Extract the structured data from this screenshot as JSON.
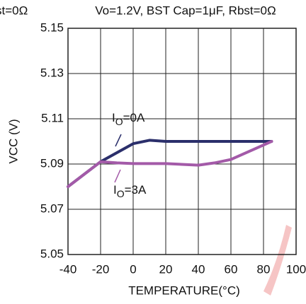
{
  "chart_data": {
    "type": "line",
    "left_title_fragment": "st=0Ω",
    "title": "Vo=1.2V, BST Cap=1μF, Rbst=0Ω",
    "x_label": "TEMPERATURE(°C)",
    "y_label": "VCC (V)",
    "xlim": [
      -40,
      100
    ],
    "xticks": [
      -40,
      -20,
      0,
      20,
      40,
      60,
      80,
      100
    ],
    "ylim": [
      5.05,
      5.15
    ],
    "yticks": [
      5.05,
      5.07,
      5.09,
      5.11,
      5.13,
      5.15
    ],
    "grid": true,
    "series": [
      {
        "name": [
          "I",
          "O",
          "=0A"
        ],
        "color": "#2b2f6b",
        "x": [
          -40,
          -20,
          -10,
          0,
          10,
          20,
          40,
          60,
          85
        ],
        "values": [
          5.08,
          5.091,
          5.095,
          5.099,
          5.1005,
          5.1,
          5.1,
          5.1,
          5.1
        ]
      },
      {
        "name": [
          "I",
          "O",
          "=3A"
        ],
        "color": "#a35aa8",
        "x": [
          -40,
          -20,
          -10,
          0,
          20,
          40,
          50,
          60,
          85
        ],
        "values": [
          5.08,
          5.091,
          5.0905,
          5.0902,
          5.0902,
          5.0895,
          5.0905,
          5.092,
          5.1
        ]
      }
    ]
  }
}
